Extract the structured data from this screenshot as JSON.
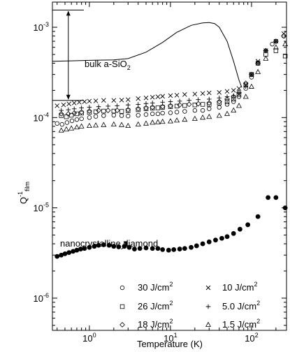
{
  "chart_data": {
    "type": "scatter",
    "xlabel": "Temperature (K)",
    "ylabel": {
      "base": "Q",
      "sup": "-1",
      "sub": "film"
    },
    "xscale": "log",
    "yscale": "log",
    "xlim": [
      0.35,
      270
    ],
    "ylim": [
      4.4e-07,
      0.0019
    ],
    "x_ticks": [
      {
        "value": 1,
        "base": "10",
        "exp": "0"
      },
      {
        "value": 10,
        "base": "10",
        "exp": "1"
      },
      {
        "value": 100,
        "base": "10",
        "exp": "2"
      }
    ],
    "y_ticks": [
      {
        "value": 1e-06,
        "base": "10",
        "exp": "-6"
      },
      {
        "value": 1e-05,
        "base": "10",
        "exp": "-5"
      },
      {
        "value": 0.0001,
        "base": "10",
        "exp": "-4"
      },
      {
        "value": 0.001,
        "base": "10",
        "exp": "-3"
      }
    ],
    "grid": false,
    "legend_placement": "bottom-right",
    "annotations": [
      {
        "text": "bulk a-SiO",
        "sub": "2",
        "target": "bulk-curve"
      },
      {
        "text": "nanocrystalline diamond",
        "target": "diamond-series",
        "arrow_to": [
          2.9,
          3.7e-06
        ]
      }
    ],
    "arrow_range": {
      "x": 0.55,
      "y_top": 0.00155,
      "y_bottom": 0.000155
    },
    "bulk_curve": {
      "x": [
        0.35,
        0.6,
        1,
        2,
        3,
        5,
        8,
        12,
        18,
        25,
        30,
        35,
        40,
        50,
        60,
        70,
        76
      ],
      "y": [
        0.00042,
        0.000425,
        0.00043,
        0.000435,
        0.00045,
        0.00053,
        0.00068,
        0.00088,
        0.00105,
        0.00112,
        0.00113,
        0.0011,
        0.001,
        0.0007,
        0.00042,
        0.00026,
        0.000215
      ]
    },
    "series": [
      {
        "name": "30 J/cm",
        "unit_sup": "2",
        "marker": "circle",
        "x": [
          0.4,
          0.46,
          0.53,
          0.61,
          0.7,
          0.8,
          1,
          1.2,
          1.5,
          2,
          2.5,
          3,
          4,
          5,
          6,
          7,
          8,
          10,
          12,
          15,
          20,
          25,
          30,
          40,
          50,
          60,
          70,
          85,
          100,
          120,
          150,
          180,
          200,
          250
        ],
        "y": [
          8.6e-05,
          8.4e-05,
          8.8e-05,
          9.2e-05,
          9.5e-05,
          9.7e-05,
          0.0001,
          0.000103,
          0.000105,
          0.000106,
          0.000105,
          0.000104,
          0.000106,
          0.000108,
          0.00011,
          0.00011,
          0.000112,
          0.000113,
          0.000115,
          0.000117,
          0.00012,
          0.00012,
          0.000125,
          0.00013,
          0.00014,
          0.00015,
          0.00017,
          0.00021,
          0.00028,
          0.0004,
          0.00055,
          0.00065,
          0.0007,
          0.0008
        ]
      },
      {
        "name": "26 J/cm",
        "unit_sup": "2",
        "marker": "square",
        "x": [
          0.45,
          0.52,
          0.6,
          0.7,
          0.8,
          1,
          1.2,
          1.5,
          2,
          2.5,
          3,
          4,
          5,
          6,
          7,
          8,
          10,
          12,
          15,
          20,
          25,
          30,
          40,
          50,
          60,
          70,
          85,
          100,
          120,
          150,
          200,
          260
        ],
        "y": [
          0.000105,
          0.000102,
          0.000106,
          0.00011,
          0.000112,
          0.000114,
          0.000116,
          0.000118,
          0.000118,
          0.000117,
          0.000119,
          0.000122,
          0.000125,
          0.000127,
          0.000128,
          0.00013,
          0.000132,
          0.000134,
          0.000136,
          0.000138,
          0.00014,
          0.00014,
          0.000145,
          0.00015,
          0.00016,
          0.00018,
          0.00023,
          0.0003,
          0.0004,
          0.0005,
          0.00055,
          0.00048
        ]
      },
      {
        "name": "18 J/cm",
        "unit_sup": "2",
        "marker": "diamond",
        "x": [
          0.45,
          0.55,
          0.65,
          0.8,
          1,
          1.3,
          1.7,
          2.2,
          3,
          4,
          5,
          6,
          8,
          10,
          13,
          17,
          22,
          30,
          40,
          50,
          60,
          70,
          85,
          100,
          120,
          150,
          200,
          250
        ],
        "y": [
          0.00011,
          0.00011,
          0.000112,
          0.000115,
          0.000118,
          0.00012,
          0.00012,
          0.00012,
          0.000122,
          0.000125,
          0.000128,
          0.00013,
          0.000132,
          0.000135,
          0.000138,
          0.00014,
          0.000142,
          0.000145,
          0.00015,
          0.00016,
          0.00017,
          0.00019,
          0.00024,
          0.0003,
          0.0004,
          0.00055,
          0.0007,
          0.0008
        ]
      },
      {
        "name": "10 J/cm",
        "unit_sup": "2",
        "marker": "cross",
        "x": [
          0.4,
          0.48,
          0.56,
          0.65,
          0.75,
          0.87,
          1,
          1.2,
          1.5,
          2,
          2.5,
          3,
          4,
          5,
          6,
          7,
          8,
          10,
          12,
          15,
          20,
          25,
          30,
          40,
          50,
          60,
          70,
          85,
          100,
          120,
          150,
          200,
          250
        ],
        "y": [
          0.000135,
          0.000138,
          0.000142,
          0.000145,
          0.000148,
          0.00015,
          0.000152,
          0.000153,
          0.000155,
          0.000155,
          0.000156,
          0.000158,
          0.000162,
          0.000165,
          0.000168,
          0.00017,
          0.000172,
          0.000175,
          0.000177,
          0.00018,
          0.000182,
          0.000185,
          0.000188,
          0.00019,
          0.000195,
          0.0002,
          0.00021,
          0.00023,
          0.0003,
          0.00042,
          0.00055,
          0.0007,
          0.00085
        ]
      },
      {
        "name": "5.0 J/cm",
        "unit_sup": "2",
        "marker": "plus",
        "x": [
          0.45,
          0.55,
          0.65,
          0.8,
          1,
          1.3,
          1.7,
          2.2,
          3,
          4,
          5,
          6,
          8,
          10,
          13,
          17,
          22,
          30,
          40,
          50,
          60,
          70,
          85,
          100,
          120,
          150,
          200
        ],
        "y": [
          0.00012,
          0.000122,
          0.000125,
          0.000128,
          0.00013,
          0.000132,
          0.000134,
          0.000135,
          0.000138,
          0.00014,
          0.000143,
          0.000145,
          0.000148,
          0.00015,
          0.000152,
          0.000155,
          0.000158,
          0.00016,
          0.000165,
          0.00017,
          0.000175,
          0.000185,
          0.00022,
          0.0003,
          0.0004,
          0.00055,
          0.0007
        ]
      },
      {
        "name": "1.5 J/cm",
        "unit_sup": "2",
        "marker": "triangle",
        "x": [
          0.45,
          0.52,
          0.6,
          0.7,
          0.8,
          1,
          1.2,
          1.5,
          2,
          2.5,
          3,
          4,
          5,
          6,
          7,
          8,
          10,
          12,
          15,
          20,
          25,
          30,
          40,
          50,
          60,
          70,
          85,
          100,
          120,
          150,
          200,
          260
        ],
        "y": [
          7.2e-05,
          7.4e-05,
          7.6e-05,
          7.8e-05,
          8e-05,
          8.1e-05,
          8.2e-05,
          8.3e-05,
          8.4e-05,
          8.3e-05,
          8.1e-05,
          8.4e-05,
          8.6e-05,
          8.8e-05,
          8.9e-05,
          9e-05,
          9.1e-05,
          9.3e-05,
          9.5e-05,
          9.7e-05,
          0.0001,
          0.000102,
          0.000105,
          0.00011,
          0.00012,
          0.000135,
          0.00017,
          0.00022,
          0.00032,
          0.00045,
          0.0006,
          0.00065
        ]
      },
      {
        "name": "nanocrystalline diamond",
        "marker": "filled-circle",
        "x": [
          0.4,
          0.45,
          0.5,
          0.56,
          0.63,
          0.7,
          0.78,
          0.87,
          1,
          1.15,
          1.3,
          1.5,
          1.75,
          2,
          2.3,
          2.7,
          3.1,
          3.6,
          4.2,
          5,
          6,
          7,
          8,
          9.5,
          11,
          13,
          15,
          18,
          21,
          25,
          30,
          36,
          43,
          50,
          60,
          72,
          90,
          120,
          160,
          200,
          260
        ],
        "y": [
          2.9e-06,
          3e-06,
          3.1e-06,
          3.2e-06,
          3.3e-06,
          3.4e-06,
          3.5e-06,
          3.55e-06,
          3.65e-06,
          3.75e-06,
          3.85e-06,
          3.9e-06,
          3.85e-06,
          3.75e-06,
          3.7e-06,
          3.75e-06,
          3.65e-06,
          3.5e-06,
          3.55e-06,
          3.6e-06,
          3.55e-06,
          3.55e-06,
          3.45e-06,
          3.4e-06,
          3.45e-06,
          3.5e-06,
          3.55e-06,
          3.65e-06,
          3.8e-06,
          4e-06,
          4.2e-06,
          4.4e-06,
          4.6e-06,
          4.8e-06,
          5.2e-06,
          5.8e-06,
          6.5e-06,
          8e-06,
          1.3e-05,
          1.3e-05,
          1e-05
        ]
      }
    ]
  }
}
